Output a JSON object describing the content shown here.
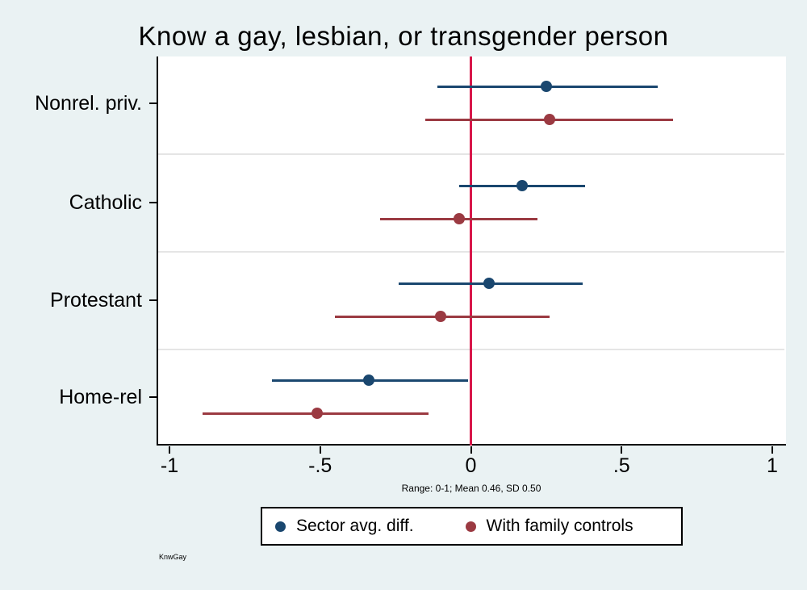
{
  "figure": {
    "watermark": "KnwGay"
  },
  "chart_data": {
    "type": "scatter",
    "subtype": "coefficient-plot-with-ci",
    "title": "Know a gay, lesbian, or transgender person",
    "note": "Range: 0-1; Mean 0.46, SD 0.50",
    "categories": [
      "Nonrel. priv.",
      "Catholic",
      "Protestant",
      "Home-rel"
    ],
    "series": [
      {
        "name": "Sector avg. diff.",
        "color": "#1A476F",
        "points": [
          {
            "category": "Nonrel. priv.",
            "est": 0.25,
            "lo": -0.11,
            "hi": 0.62
          },
          {
            "category": "Catholic",
            "est": 0.17,
            "lo": -0.04,
            "hi": 0.38
          },
          {
            "category": "Protestant",
            "est": 0.06,
            "lo": -0.24,
            "hi": 0.37
          },
          {
            "category": "Home-rel",
            "est": -0.34,
            "lo": -0.66,
            "hi": -0.01
          }
        ]
      },
      {
        "name": "With family controls",
        "color": "#9B3A42",
        "points": [
          {
            "category": "Nonrel. priv.",
            "est": 0.26,
            "lo": -0.15,
            "hi": 0.67
          },
          {
            "category": "Catholic",
            "est": -0.04,
            "lo": -0.3,
            "hi": 0.22
          },
          {
            "category": "Protestant",
            "est": -0.1,
            "lo": -0.45,
            "hi": 0.26
          },
          {
            "category": "Home-rel",
            "est": -0.51,
            "lo": -0.89,
            "hi": -0.14
          }
        ]
      }
    ],
    "x_axis": {
      "tick_labels": [
        "-1",
        "-.5",
        "0",
        ".5",
        "1"
      ],
      "tick_values": [
        -1,
        -0.5,
        0,
        0.5,
        1
      ],
      "range": [
        -1.05,
        1.05
      ]
    },
    "zero_line": {
      "x": 0,
      "color": "#D8174A"
    },
    "legend_position": "bottom-center",
    "grid": "horizontal-category-separators"
  }
}
